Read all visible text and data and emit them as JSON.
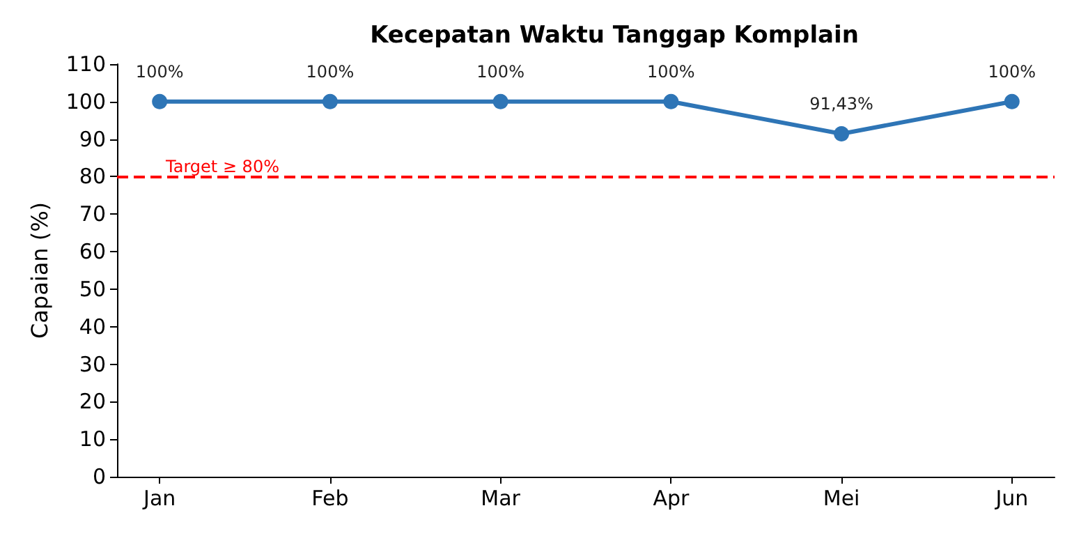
{
  "chart_data": {
    "type": "line",
    "title": "Kecepatan Waktu Tanggap Komplain",
    "ylabel": "Capaian (%)",
    "categories": [
      "Jan",
      "Feb",
      "Mar",
      "Apr",
      "Mei",
      "Jun"
    ],
    "series": [
      {
        "color": "#2e75b6",
        "values": [
          100,
          100,
          100,
          100,
          91.43,
          100
        ],
        "value_labels": [
          "100%",
          "100%",
          "100%",
          "100%",
          "91,43%",
          "100%"
        ]
      }
    ],
    "ylim": [
      0,
      110
    ],
    "yticks": [
      0,
      10,
      20,
      30,
      40,
      50,
      60,
      70,
      80,
      90,
      100,
      110
    ],
    "ref_lines": [
      {
        "axis": "y",
        "value": 80,
        "label": "Target ≥ 80%",
        "color": "#ff0000",
        "line_style": "dashed"
      }
    ],
    "grid": false,
    "marker": "circle",
    "line_style": "solid"
  }
}
